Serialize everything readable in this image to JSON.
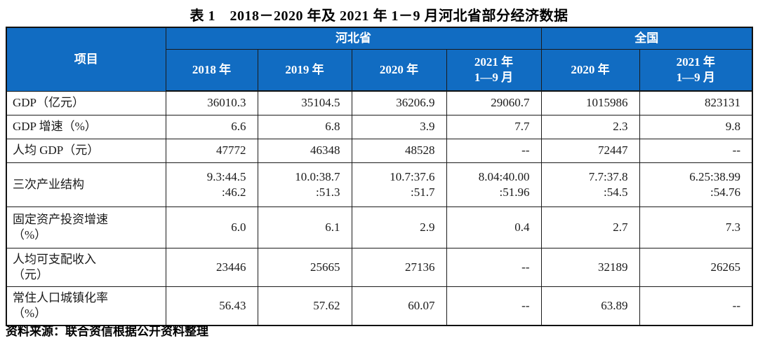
{
  "title": "表 1　2018－2020 年及 2021 年 1－9 月河北省部分经济数据",
  "colors": {
    "header_bg": "#116cc2",
    "header_text": "#ffffff",
    "border": "#1b1b1b"
  },
  "table": {
    "project_header": "项目",
    "groups": [
      {
        "label": "河北省",
        "colspan": 4
      },
      {
        "label": "全国",
        "colspan": 2
      }
    ],
    "year_headers": [
      "2018 年",
      "2019 年",
      "2020 年",
      "2021 年\n1—9 月",
      "2020 年",
      "2021 年\n1—9 月"
    ],
    "rows": [
      {
        "label": "GDP（亿元）",
        "values": [
          "36010.3",
          "35104.5",
          "36206.9",
          "29060.7",
          "1015986",
          "823131"
        ]
      },
      {
        "label": "GDP 增速（%）",
        "values": [
          "6.6",
          "6.8",
          "3.9",
          "7.7",
          "2.3",
          "9.8"
        ]
      },
      {
        "label": "人均 GDP（元）",
        "values": [
          "47772",
          "46348",
          "48528",
          "--",
          "72447",
          "--"
        ]
      },
      {
        "label": "三次产业结构",
        "values": [
          "9.3:44.5\n:46.2",
          "10.0:38.7\n:51.3",
          "10.7:37.6\n:51.7",
          "8.04:40.00\n:51.96",
          "7.7:37.8\n:54.5",
          "6.25:38.99\n:54.76"
        ]
      },
      {
        "label": "固定资产投资增速\n（%）",
        "values": [
          "6.0",
          "6.1",
          "2.9",
          "0.4",
          "2.7",
          "7.3"
        ]
      },
      {
        "label": "人均可支配收入\n（元）",
        "values": [
          "23446",
          "25665",
          "27136",
          "--",
          "32189",
          "26265"
        ]
      },
      {
        "label": "常住人口城镇化率\n（%）",
        "values": [
          "56.43",
          "57.62",
          "60.07",
          "--",
          "63.89",
          "--"
        ]
      }
    ]
  },
  "source_note": "资料来源：联合资信根据公开资料整理"
}
